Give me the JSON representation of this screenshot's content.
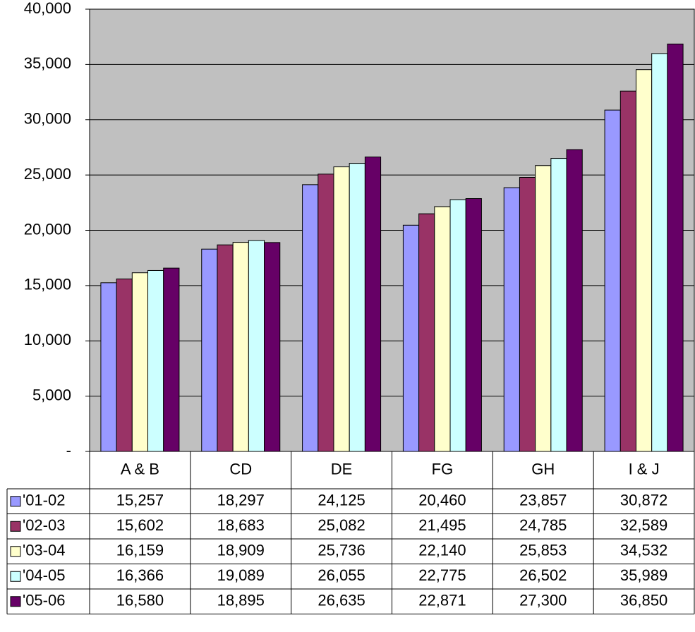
{
  "chart_data": {
    "type": "bar",
    "categories": [
      "A & B",
      "CD",
      "DE",
      "FG",
      "GH",
      "I & J"
    ],
    "series": [
      {
        "name": "'01-02",
        "color": "#9999ff",
        "values": [
          15257,
          18297,
          24125,
          20460,
          23857,
          30872
        ],
        "value_labels": [
          "15,257",
          "18,297",
          "24,125",
          "20,460",
          "23,857",
          "30,872"
        ]
      },
      {
        "name": "'02-03",
        "color": "#993366",
        "values": [
          15602,
          18683,
          25082,
          21495,
          24785,
          32589
        ],
        "value_labels": [
          "15,602",
          "18,683",
          "25,082",
          "21,495",
          "24,785",
          "32,589"
        ]
      },
      {
        "name": "'03-04",
        "color": "#ffffcc",
        "values": [
          16159,
          18909,
          25736,
          22140,
          25853,
          34532
        ],
        "value_labels": [
          "16,159",
          "18,909",
          "25,736",
          "22,140",
          "25,853",
          "34,532"
        ]
      },
      {
        "name": "'04-05",
        "color": "#ccffff",
        "values": [
          16366,
          19089,
          26055,
          22775,
          26502,
          35989
        ],
        "value_labels": [
          "16,366",
          "19,089",
          "26,055",
          "22,775",
          "26,502",
          "35,989"
        ]
      },
      {
        "name": "'05-06",
        "color": "#660066",
        "values": [
          16580,
          18895,
          26635,
          22871,
          27300,
          36850
        ],
        "value_labels": [
          "16,580",
          "18,895",
          "26,635",
          "22,871",
          "27,300",
          "36,850"
        ]
      }
    ],
    "ylim": [
      0,
      40000
    ],
    "yticks": [
      {
        "value": 0,
        "label": "-"
      },
      {
        "value": 5000,
        "label": "5,000"
      },
      {
        "value": 10000,
        "label": "10,000"
      },
      {
        "value": 15000,
        "label": "15,000"
      },
      {
        "value": 20000,
        "label": "20,000"
      },
      {
        "value": 25000,
        "label": "25,000"
      },
      {
        "value": 30000,
        "label": "30,000"
      },
      {
        "value": 35000,
        "label": "35,000"
      },
      {
        "value": 40000,
        "label": "40,000"
      }
    ],
    "grid": true,
    "plot_background": "#c0c0c0"
  }
}
